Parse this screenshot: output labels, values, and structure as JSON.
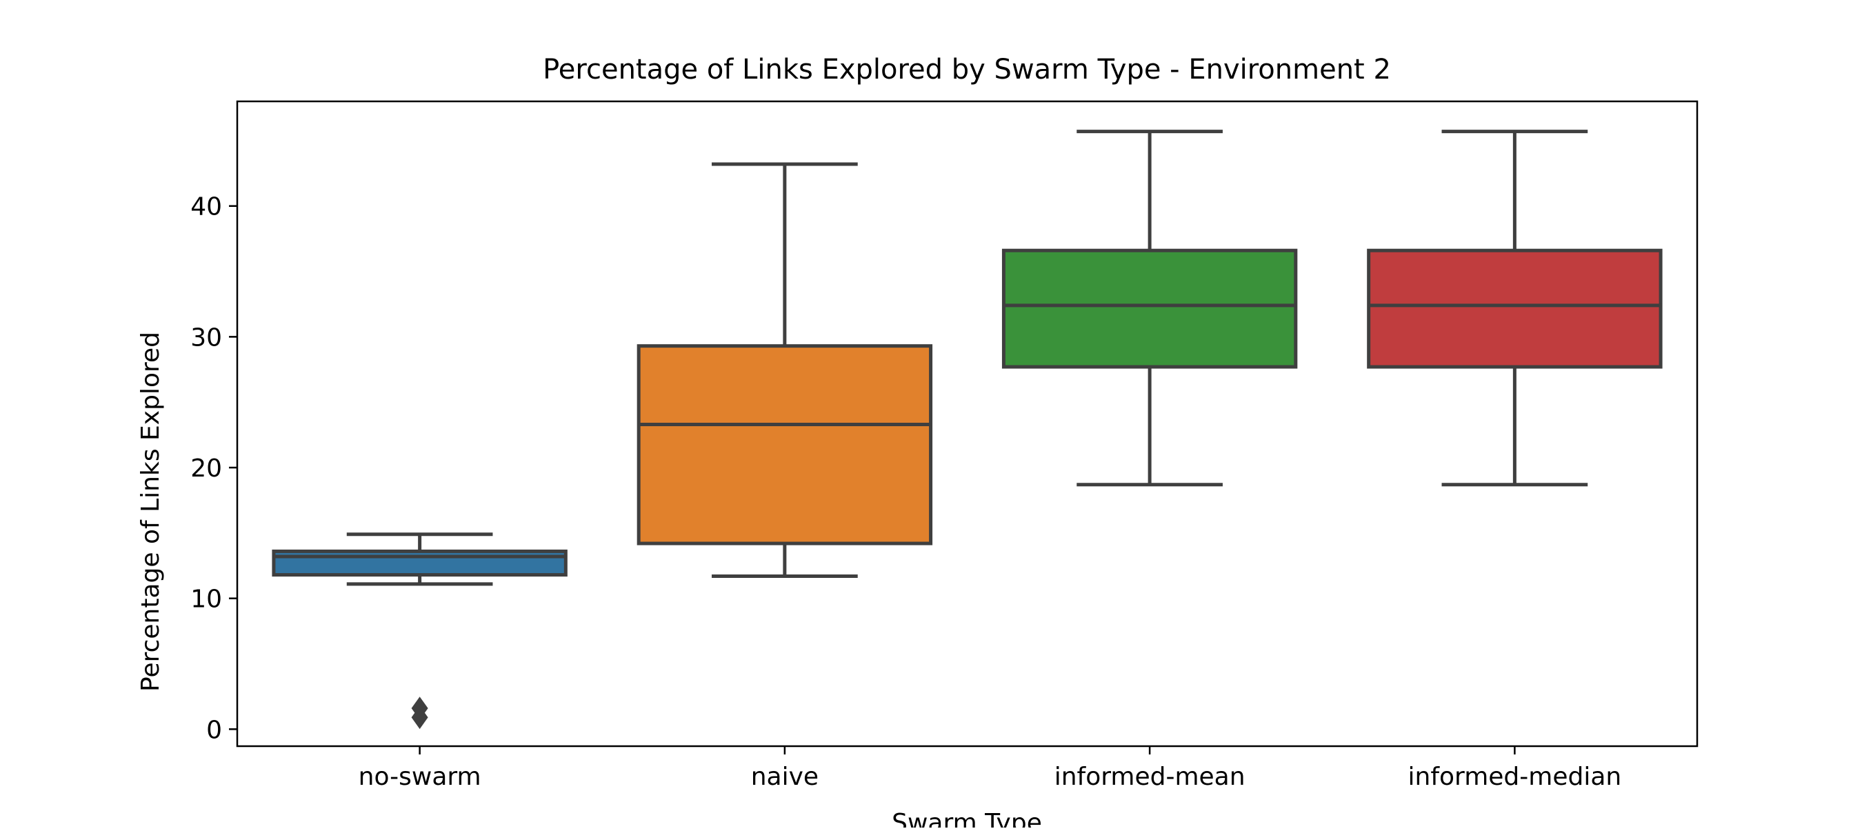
{
  "chart_data": {
    "type": "box",
    "title": "Percentage of Links Explored by Swarm Type - Environment 2",
    "xlabel": "Swarm Type",
    "ylabel": "Percentage of Links Explored",
    "categories": [
      "no-swarm",
      "naive",
      "informed-mean",
      "informed-median"
    ],
    "ylim": [
      -1.3,
      48
    ],
    "yticks": [
      0,
      10,
      20,
      30,
      40
    ],
    "grid": false,
    "legend": "none",
    "boxes": [
      {
        "category": "no-swarm",
        "whisker_low": 11.1,
        "q1": 11.8,
        "median": 13.2,
        "q3": 13.6,
        "whisker_high": 14.9,
        "outliers": [
          0.9,
          1.6
        ],
        "color": "#3274a1"
      },
      {
        "category": "naive",
        "whisker_low": 11.7,
        "q1": 14.2,
        "median": 23.3,
        "q3": 29.3,
        "whisker_high": 43.2,
        "outliers": [],
        "color": "#e1812c"
      },
      {
        "category": "informed-mean",
        "whisker_low": 18.7,
        "q1": 27.7,
        "median": 32.4,
        "q3": 36.6,
        "whisker_high": 45.7,
        "outliers": [],
        "color": "#3a923a"
      },
      {
        "category": "informed-median",
        "whisker_low": 18.7,
        "q1": 27.7,
        "median": 32.4,
        "q3": 36.6,
        "whisker_high": 45.7,
        "outliers": [],
        "color": "#c03d3e"
      }
    ],
    "edge_color": "#3f3f3f"
  }
}
